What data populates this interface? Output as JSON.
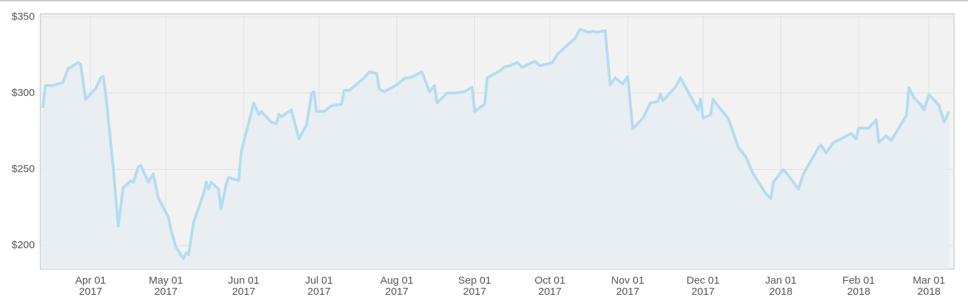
{
  "chart_data": {
    "type": "area",
    "x": [
      "2017-03-13",
      "2017-03-14",
      "2017-03-17",
      "2017-03-21",
      "2017-03-23",
      "2017-03-27",
      "2017-03-28",
      "2017-03-30",
      "2017-04-03",
      "2017-04-05",
      "2017-04-06",
      "2017-04-07",
      "2017-04-10",
      "2017-04-12",
      "2017-04-14",
      "2017-04-17",
      "2017-04-18",
      "2017-04-20",
      "2017-04-21",
      "2017-04-24",
      "2017-04-26",
      "2017-04-28",
      "2017-05-02",
      "2017-05-03",
      "2017-05-05",
      "2017-05-08",
      "2017-05-09",
      "2017-05-10",
      "2017-05-12",
      "2017-05-16",
      "2017-05-17",
      "2017-05-18",
      "2017-05-19",
      "2017-05-22",
      "2017-05-23",
      "2017-05-25",
      "2017-05-26",
      "2017-05-30",
      "2017-05-31",
      "2017-06-05",
      "2017-06-07",
      "2017-06-08",
      "2017-06-12",
      "2017-06-14",
      "2017-06-15",
      "2017-06-16",
      "2017-06-20",
      "2017-06-23",
      "2017-06-26",
      "2017-06-28",
      "2017-06-29",
      "2017-06-30",
      "2017-07-03",
      "2017-07-06",
      "2017-07-10",
      "2017-07-11",
      "2017-07-13",
      "2017-07-19",
      "2017-07-21",
      "2017-07-24",
      "2017-07-25",
      "2017-07-27",
      "2017-08-01",
      "2017-08-04",
      "2017-08-07",
      "2017-08-11",
      "2017-08-14",
      "2017-08-16",
      "2017-08-17",
      "2017-08-21",
      "2017-08-24",
      "2017-08-28",
      "2017-08-31",
      "2017-09-01",
      "2017-09-05",
      "2017-09-06",
      "2017-09-11",
      "2017-09-13",
      "2017-09-15",
      "2017-09-18",
      "2017-09-20",
      "2017-09-25",
      "2017-09-27",
      "2017-10-02",
      "2017-10-04",
      "2017-10-09",
      "2017-10-11",
      "2017-10-13",
      "2017-10-16",
      "2017-10-18",
      "2017-10-20",
      "2017-10-23",
      "2017-10-25",
      "2017-10-27",
      "2017-10-30",
      "2017-11-01",
      "2017-11-03",
      "2017-11-07",
      "2017-11-10",
      "2017-11-13",
      "2017-11-14",
      "2017-11-15",
      "2017-11-20",
      "2017-11-22",
      "2017-11-24",
      "2017-11-29",
      "2017-11-30",
      "2017-12-01",
      "2017-12-04",
      "2017-12-05",
      "2017-12-06",
      "2017-12-11",
      "2017-12-13",
      "2017-12-15",
      "2017-12-18",
      "2017-12-21",
      "2017-12-26",
      "2017-12-28",
      "2017-12-29",
      "2018-01-02",
      "2018-01-04",
      "2018-01-08",
      "2018-01-10",
      "2018-01-16",
      "2018-01-17",
      "2018-01-19",
      "2018-01-22",
      "2018-01-25",
      "2018-01-29",
      "2018-01-31",
      "2018-02-01",
      "2018-02-05",
      "2018-02-08",
      "2018-02-09",
      "2018-02-12",
      "2018-02-14",
      "2018-02-16",
      "2018-02-20",
      "2018-02-21",
      "2018-02-23",
      "2018-02-26",
      "2018-02-27",
      "2018-03-01",
      "2018-03-05",
      "2018-03-07",
      "2018-03-09"
    ],
    "values": [
      290.4,
      305,
      305,
      307,
      316,
      320,
      319,
      296,
      303,
      310,
      311,
      300,
      251.6,
      212.8,
      237.9,
      242.5,
      241.6,
      251.6,
      252.5,
      241.6,
      247,
      231,
      218.7,
      210.5,
      199,
      191.3,
      195,
      194,
      215,
      234,
      241.6,
      237,
      241.6,
      237,
      224,
      240,
      244.7,
      242.5,
      261.6,
      293.6,
      286,
      288,
      281,
      280,
      286,
      284.5,
      289,
      270,
      279,
      299.5,
      301,
      288,
      288,
      291.8,
      292.7,
      301.8,
      301.8,
      310,
      314,
      313,
      302.7,
      301,
      305.5,
      309.6,
      310.5,
      314,
      301,
      305,
      293.6,
      300,
      300,
      301,
      304,
      288,
      292.7,
      310,
      314.6,
      317.3,
      318,
      320,
      317,
      321,
      318,
      320,
      325.6,
      333,
      336,
      342,
      340,
      340.6,
      340,
      341,
      305.5,
      310,
      306,
      311,
      276.7,
      283.5,
      293.6,
      294.5,
      299.5,
      295,
      304,
      310,
      304,
      289,
      296,
      283.5,
      285.8,
      296,
      293.6,
      283.5,
      274.4,
      264.4,
      258.4,
      247,
      234,
      230.6,
      241.6,
      249.8,
      246,
      237,
      247,
      264.4,
      266,
      260.7,
      267.6,
      270,
      273.5,
      270,
      277,
      277,
      282.6,
      267.6,
      272,
      269,
      274.4,
      285.4,
      303.6,
      297,
      292,
      289,
      299,
      292,
      281,
      288
    ],
    "color": "#b5dcef",
    "fill_color": "#e6edf1",
    "background": "#f2f2f2",
    "xlim": [
      "2017-03-12",
      "2018-03-11"
    ],
    "xticks": [
      {
        "value": "2017-04-01",
        "label": "Apr 01 2017"
      },
      {
        "value": "2017-05-01",
        "label": "May 01 2017"
      },
      {
        "value": "2017-06-01",
        "label": "Jun 01 2017"
      },
      {
        "value": "2017-07-01",
        "label": "Jul 01 2017"
      },
      {
        "value": "2017-08-01",
        "label": "Aug 01 2017"
      },
      {
        "value": "2017-09-01",
        "label": "Sep 01 2017"
      },
      {
        "value": "2017-10-01",
        "label": "Oct 01 2017"
      },
      {
        "value": "2017-11-01",
        "label": "Nov 01 2017"
      },
      {
        "value": "2017-12-01",
        "label": "Dec 01 2017"
      },
      {
        "value": "2018-01-01",
        "label": "Jan 01 2018"
      },
      {
        "value": "2018-02-01",
        "label": "Feb 01 2018"
      },
      {
        "value": "2018-03-01",
        "label": "Mar 01 2018"
      }
    ],
    "ylim": [
      184.5,
      352
    ],
    "yticks": [
      {
        "value": 200,
        "label": "$200"
      },
      {
        "value": 250,
        "label": "$250"
      },
      {
        "value": 300,
        "label": "$300"
      },
      {
        "value": 350,
        "label": "$350"
      }
    ],
    "grid": true
  }
}
